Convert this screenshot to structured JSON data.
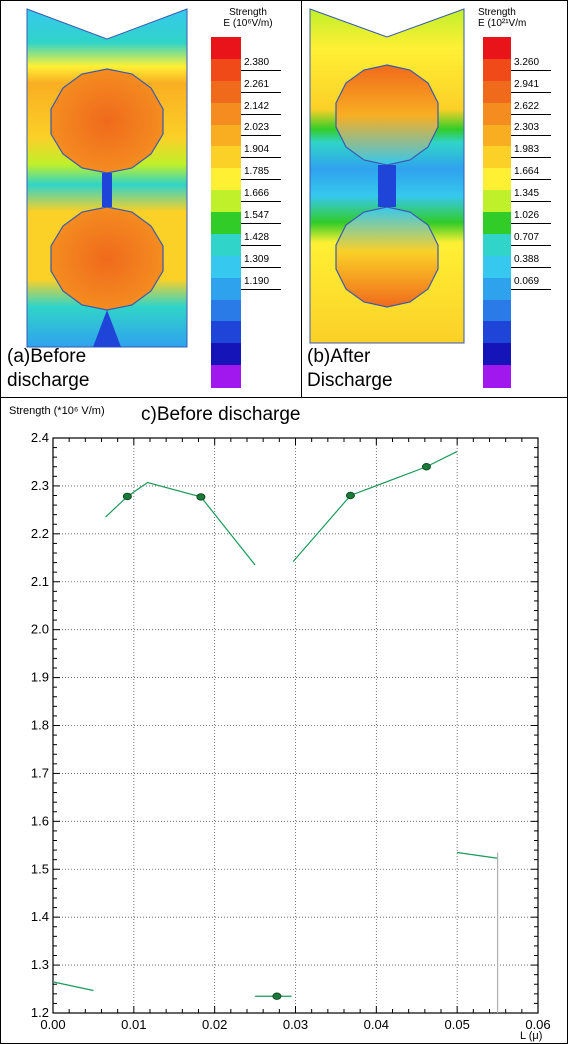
{
  "panels": {
    "a": {
      "caption_line1": "(a)Before",
      "caption_line2": "discharge",
      "colorbar": {
        "title_line1": "Strength",
        "title_line2": "E (10⁶V/m)",
        "tick_labels": [
          "2.380",
          "2.261",
          "2.142",
          "2.023",
          "1.904",
          "1.785",
          "1.666",
          "1.547",
          "1.428",
          "1.309",
          "1.190"
        ]
      }
    },
    "b": {
      "caption_line1": "(b)After",
      "caption_line2": "Discharge",
      "colorbar": {
        "title_line1": "Strength",
        "title_line2": "E (10²¹V/m",
        "tick_labels": [
          "3.260",
          "2.941",
          "2.622",
          "2.303",
          "1.983",
          "1.664",
          "1.345",
          "1.026",
          "0.707",
          "0.388",
          "0.069"
        ]
      }
    }
  },
  "colors": {
    "scale": [
      "#e8141a",
      "#ef4a18",
      "#f06a1c",
      "#f48c20",
      "#f9ae22",
      "#fbd027",
      "#fff034",
      "#bff02a",
      "#32cc28",
      "#30d4c8",
      "#36c8ee",
      "#2fa2ee",
      "#2a7ae8",
      "#1e44d8",
      "#1414b8",
      "#a018ee"
    ],
    "line": "#1a9a5a",
    "marker_fill": "#1a7a3a",
    "marker_stroke": "#0a4a20",
    "vline": "#b0b0b0"
  },
  "chart_data": {
    "type": "line",
    "title": "c)Before discharge",
    "ylabel": "Strength (*10⁶ V/m)",
    "xlabel": "L (μ)",
    "xlim": [
      0.0,
      0.06
    ],
    "ylim": [
      1.2,
      2.4
    ],
    "x_ticks": [
      "0.00",
      "0.01",
      "0.02",
      "0.03",
      "0.04",
      "0.05",
      "0.06"
    ],
    "y_ticks": [
      "1.2",
      "1.3",
      "1.4",
      "1.5",
      "1.6",
      "1.7",
      "1.8",
      "1.9",
      "2.0",
      "2.1",
      "2.2",
      "2.3",
      "2.4"
    ],
    "grid": true,
    "segments": [
      {
        "x": [
          0.0,
          0.005
        ],
        "y": [
          1.265,
          1.247
        ]
      },
      {
        "x": [
          0.0065,
          0.0092,
          0.0117,
          0.0183,
          0.025
        ],
        "y": [
          2.235,
          2.278,
          2.307,
          2.277,
          2.135
        ]
      },
      {
        "x": [
          0.025,
          0.0277,
          0.0295
        ],
        "y": [
          1.235,
          1.235,
          1.235
        ]
      },
      {
        "x": [
          0.0297,
          0.0368,
          0.0462,
          0.05
        ],
        "y": [
          2.142,
          2.28,
          2.34,
          2.372
        ]
      },
      {
        "x": [
          0.05,
          0.055
        ],
        "y": [
          1.535,
          1.523
        ]
      }
    ],
    "markers": {
      "x": [
        0.0092,
        0.0183,
        0.0277,
        0.0368,
        0.0462
      ],
      "y": [
        2.278,
        2.277,
        1.235,
        2.28,
        2.34
      ]
    },
    "vertical_line": {
      "x": 0.055,
      "y": [
        1.2,
        1.535
      ]
    }
  }
}
